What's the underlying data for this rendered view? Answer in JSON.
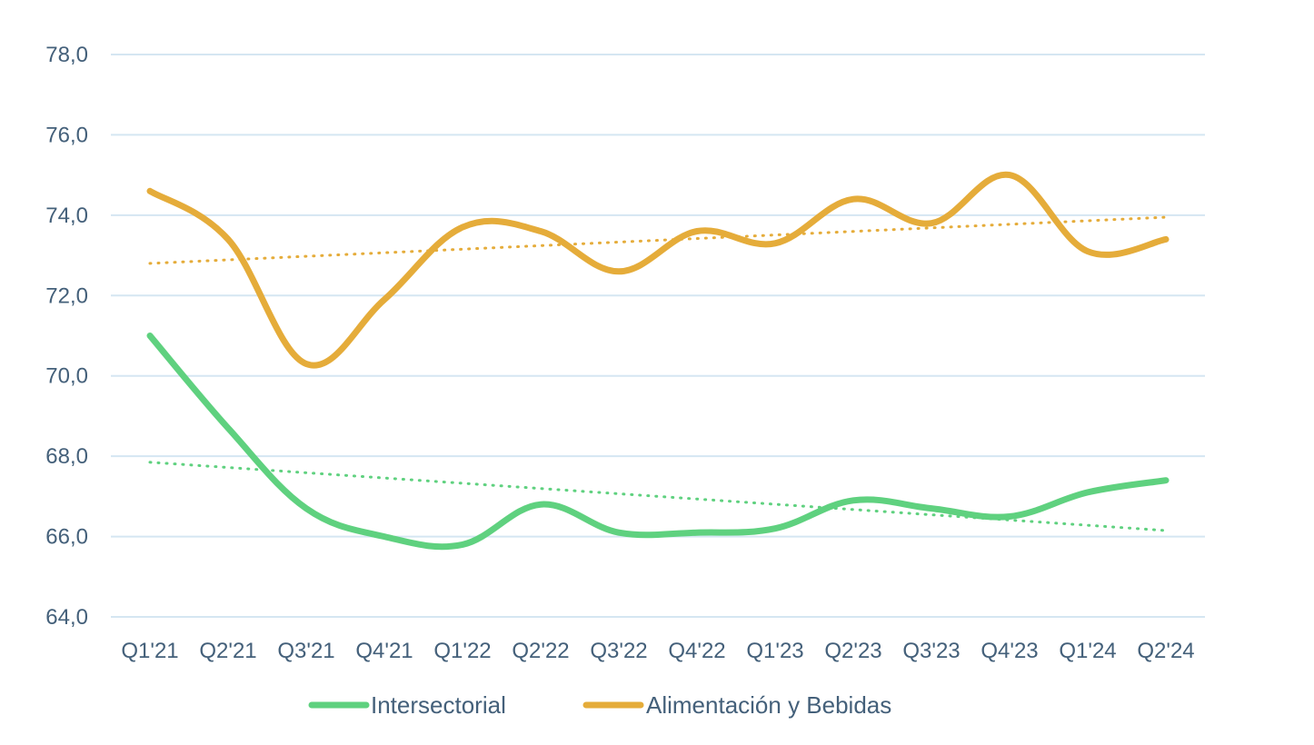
{
  "chart_data": {
    "type": "line",
    "categories": [
      "Q1'21",
      "Q2'21",
      "Q3'21",
      "Q4'21",
      "Q1'22",
      "Q2'22",
      "Q3'22",
      "Q4'22",
      "Q1'23",
      "Q2'23",
      "Q3'23",
      "Q4'23",
      "Q1'24",
      "Q2'24"
    ],
    "series": [
      {
        "name": "Intersectorial",
        "color": "#5fd17f",
        "values": [
          71.0,
          68.7,
          66.7,
          66.0,
          65.8,
          66.8,
          66.1,
          66.1,
          66.2,
          66.9,
          66.7,
          66.5,
          67.1,
          67.4
        ],
        "trendline": [
          67.85,
          66.15
        ]
      },
      {
        "name": "Alimentación y Bebidas",
        "color": "#e5ac3a",
        "values": [
          74.6,
          73.4,
          70.3,
          71.9,
          73.7,
          73.6,
          72.6,
          73.6,
          73.3,
          74.4,
          73.8,
          75.0,
          73.1,
          73.4
        ],
        "trendline": [
          72.8,
          73.95
        ]
      }
    ],
    "yticks": [
      "78,0",
      "76,0",
      "74,0",
      "72,0",
      "70,0",
      "68,0",
      "66,0",
      "64,0"
    ],
    "ylim": [
      64,
      78
    ],
    "grid": true,
    "legend_position": "bottom",
    "title": "",
    "xlabel": "",
    "ylabel": ""
  }
}
